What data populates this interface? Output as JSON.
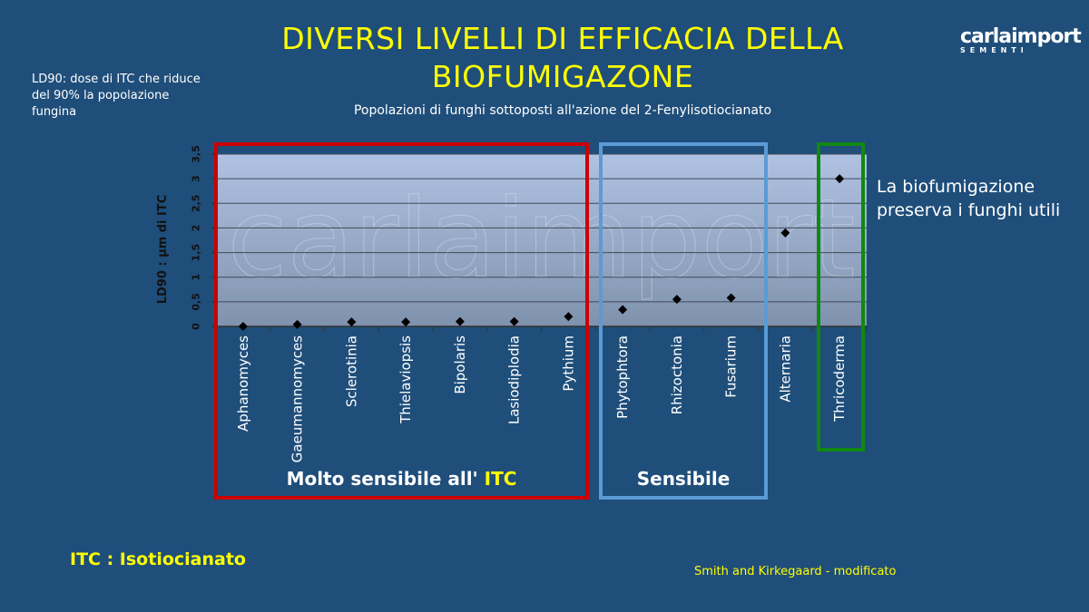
{
  "slide": {
    "title_line1": "DIVERSI LIVELLI DI EFFICACIA DELLA",
    "title_line2": "BIOFUMIGAZONE",
    "note": "LD90: dose di ITC che riduce del 90% la popolazione fungina",
    "logo_main": "carlaimport",
    "logo_sub": "SEMENTI",
    "preserve_line1": "La biofumigazione",
    "preserve_line2": "preserva i funghi utili",
    "itc_definition": "ITC : Isotiocianato",
    "source": "Smith and Kirkegaard - modificato",
    "group_very_sensitive_prefix": "Molto sensibile all'",
    "group_very_sensitive_itc": "ITC",
    "group_sensitive": "Sensibile",
    "colors": {
      "background": "#1f4e7a",
      "title": "#ffff00",
      "very_sensitive_box": "#cc0000",
      "sensitive_box": "#5b9bd5",
      "useful_box": "#118811"
    }
  },
  "chart_data": {
    "type": "scatter",
    "title": "Popolazioni di funghi sottoposti all'azione del 2-Fenylisotiocianato",
    "ylabel": "LD90 : µm di ITC",
    "xlabel": "",
    "ylim": [
      0,
      3.5
    ],
    "yticks": [
      "0",
      "0,5",
      "1",
      "1,5",
      "2",
      "2,5",
      "3",
      "3,5"
    ],
    "grid": true,
    "marker": "diamond",
    "categories": [
      "Aphanomyces",
      "Gaeumannomyces",
      "Sclerotinia",
      "Thielaviopsis",
      "Bipolaris",
      "Lasiodiplodia",
      "Pythium",
      "Phytophtora",
      "Rhizoctonia",
      "Fusarium",
      "Alternaria",
      "Thricoderma"
    ],
    "values": [
      0,
      0.04,
      0.09,
      0.09,
      0.1,
      0.1,
      0.2,
      0.34,
      0.55,
      0.58,
      1.9,
      3.0
    ]
  }
}
